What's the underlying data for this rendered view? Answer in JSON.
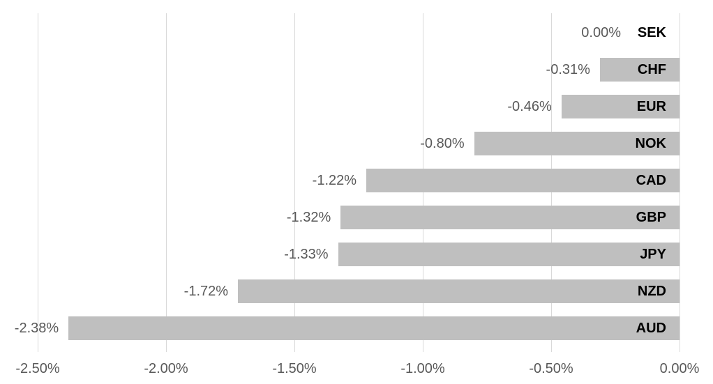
{
  "chart_data": {
    "type": "bar",
    "orientation": "horizontal",
    "title": "",
    "xlabel": "",
    "ylabel": "",
    "categories": [
      "SEK",
      "CHF",
      "EUR",
      "NOK",
      "CAD",
      "GBP",
      "JPY",
      "NZD",
      "AUD"
    ],
    "values": [
      0.0,
      -0.31,
      -0.46,
      -0.8,
      -1.22,
      -1.32,
      -1.33,
      -1.72,
      -2.38
    ],
    "value_labels": [
      "0.00%",
      "-0.31%",
      "-0.46%",
      "-0.80%",
      "-1.22%",
      "-1.32%",
      "-1.33%",
      "-1.72%",
      "-2.38%"
    ],
    "x_ticks": [
      "-2.50%",
      "-2.00%",
      "-1.50%",
      "-1.00%",
      "-0.50%",
      "0.00%"
    ],
    "x_tick_values": [
      -2.5,
      -2.0,
      -1.5,
      -1.0,
      -0.5,
      0.0
    ],
    "xlim": [
      -2.5,
      0.0
    ],
    "grid": true,
    "legend": false,
    "colors": {
      "bar_fill": "#bfbfbf",
      "gridline": "#d9d9d9",
      "value_label": "#595959",
      "axis_label": "#595959",
      "category_label": "#000000",
      "background": "#ffffff"
    }
  }
}
